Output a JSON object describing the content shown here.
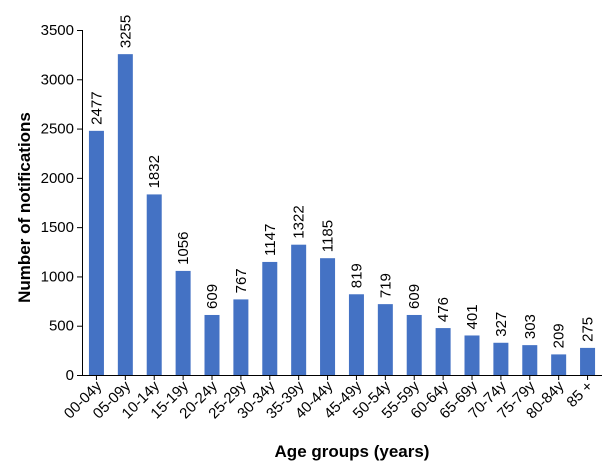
{
  "chart_data": {
    "type": "bar",
    "title": "",
    "xlabel": "Age groups (years)",
    "ylabel": "Number of notifications",
    "ylim": [
      0,
      3500
    ],
    "yticks": [
      "0",
      "500",
      "1000",
      "1500",
      "2000",
      "2500",
      "3000",
      "3500"
    ],
    "grid": false,
    "legend": "none",
    "bar_color": "#4472C4",
    "categories": [
      "00-04y",
      "05-09y",
      "10-14y",
      "15-19y",
      "20-24y",
      "25-29y",
      "30-34y",
      "35-39y",
      "40-44y",
      "45-49y",
      "50-54y",
      "55-59y",
      "60-64y",
      "65-69y",
      "70-74y",
      "75-79y",
      "80-84y",
      "85 +"
    ],
    "values": [
      2477,
      3255,
      1832,
      1056,
      609,
      767,
      1147,
      1322,
      1185,
      819,
      719,
      609,
      476,
      401,
      327,
      303,
      209,
      275
    ]
  }
}
